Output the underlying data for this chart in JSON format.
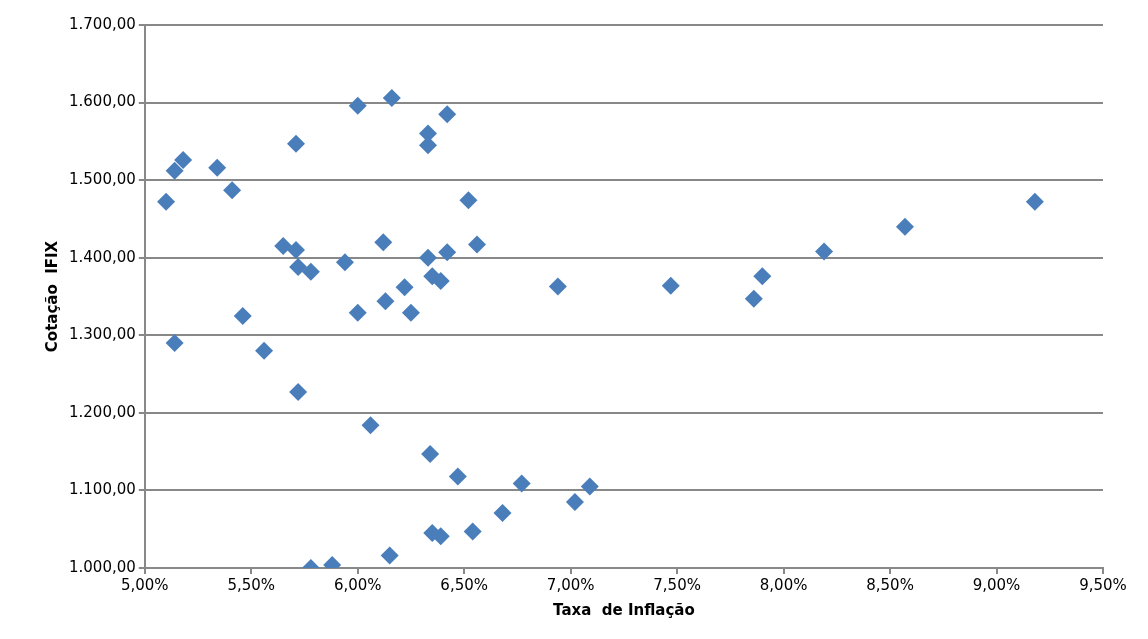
{
  "chart_data": {
    "type": "scatter",
    "xlabel": "Taxa  de Inflação",
    "ylabel": "Cotação  IFIX",
    "marker": "diamond",
    "grid": "y",
    "legend": false,
    "xlim": [
      5,
      9.5
    ],
    "xticks": [
      {
        "value": 5,
        "label": "5,00%"
      },
      {
        "value": 5.5,
        "label": "5,50%"
      },
      {
        "value": 6,
        "label": "6,00%"
      },
      {
        "value": 6.5,
        "label": "6,50%"
      },
      {
        "value": 7,
        "label": "7,00%"
      },
      {
        "value": 7.5,
        "label": "7,50%"
      },
      {
        "value": 8,
        "label": "8,00%"
      },
      {
        "value": 8.5,
        "label": "8,50%"
      },
      {
        "value": 9,
        "label": "9,00%"
      },
      {
        "value": 9.5,
        "label": "9,50%"
      }
    ],
    "ylim": [
      1000,
      1700
    ],
    "yticks": [
      {
        "value": 1000,
        "label": "1.000,00"
      },
      {
        "value": 1100,
        "label": "1.100,00"
      },
      {
        "value": 1200,
        "label": "1.200,00"
      },
      {
        "value": 1300,
        "label": "1.300,00"
      },
      {
        "value": 1400,
        "label": "1.400,00"
      },
      {
        "value": 1500,
        "label": "1.500,00"
      },
      {
        "value": 1600,
        "label": "1.600,00"
      },
      {
        "value": 1700,
        "label": "1.700,00"
      }
    ],
    "series": [
      {
        "color": "#4a7ebb",
        "x": [
          5.1,
          5.14,
          5.18,
          5.14,
          5.34,
          5.41,
          5.46,
          5.56,
          5.65,
          5.71,
          5.71,
          5.72,
          5.78,
          5.72,
          5.78,
          5.88,
          5.94,
          6.0,
          6.0,
          6.06,
          6.12,
          6.13,
          6.15,
          6.16,
          6.22,
          6.25,
          6.33,
          6.33,
          6.34,
          6.35,
          6.33,
          6.35,
          6.39,
          6.39,
          6.42,
          6.42,
          6.47,
          6.52,
          6.54,
          6.56,
          6.68,
          6.77,
          6.94,
          7.02,
          7.09,
          7.47,
          7.86,
          7.9,
          8.19,
          8.57,
          9.18
        ],
        "values": [
          1472,
          1512,
          1526,
          1290,
          1516,
          1487,
          1325,
          1280,
          1415,
          1547,
          1410,
          1388,
          1382,
          1227,
          1000,
          1004,
          1394,
          1596,
          1329,
          1184,
          1420,
          1344,
          1016,
          1606,
          1362,
          1329,
          1560,
          1545,
          1147,
          1045,
          1400,
          1376,
          1370,
          1041,
          1585,
          1407,
          1118,
          1474,
          1047,
          1417,
          1071,
          1109,
          1363,
          1085,
          1105,
          1364,
          1347,
          1376,
          1408,
          1440,
          1472
        ]
      }
    ]
  }
}
